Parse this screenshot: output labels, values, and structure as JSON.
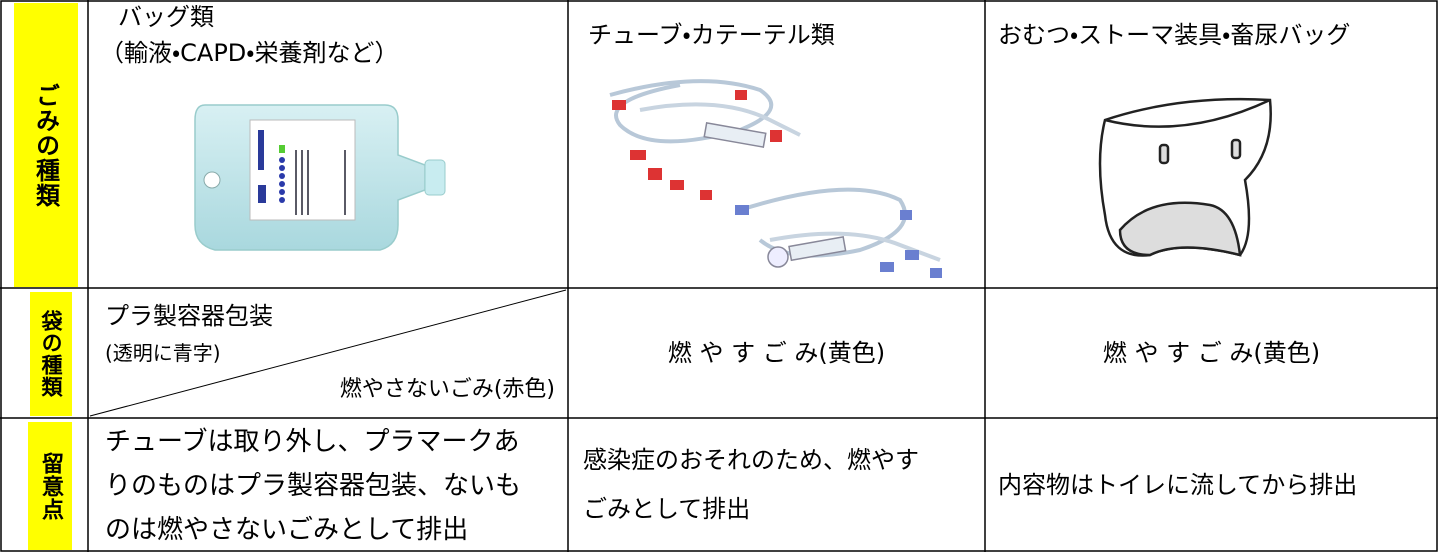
{
  "table": {
    "rows": [
      {
        "label": "ごみの種類",
        "cells": [
          [
            "バッグ類",
            "（輸液・CAPD・栄養剤など）"
          ],
          [
            "チューブ・カテーテル類"
          ],
          [
            "おむつ・ストーマ装具・畜尿バッグ"
          ]
        ]
      },
      {
        "label": "袋の種類",
        "cells": [
          [
            "プラ製容器包装",
            "(透明に青字)",
            "燃やさないごみ(赤色)"
          ],
          [
            "燃 や す ご み(黄色)"
          ],
          [
            "燃 や す ご み(黄色)"
          ]
        ]
      },
      {
        "label": "留意点",
        "cells": [
          [
            "チューブは取り外し、プラマークあ",
            "りのものはプラ製容器包装、ないも",
            "のは燃やさないごみとして排出"
          ],
          [
            "感染症のおそれのため、燃やす",
            "ごみとして排出"
          ],
          [
            "内容物はトイレに流してから排出"
          ]
        ]
      }
    ]
  }
}
